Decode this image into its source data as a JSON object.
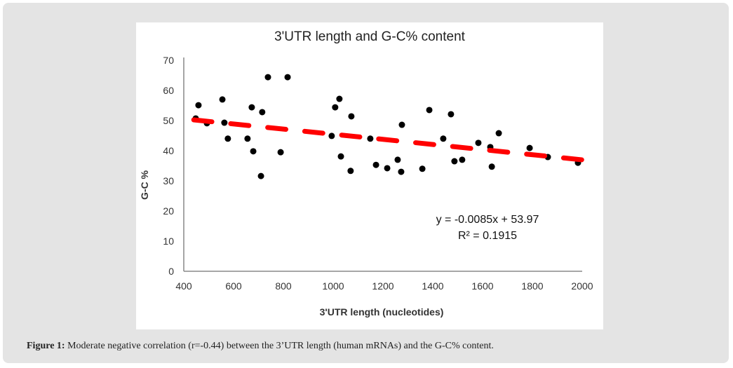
{
  "caption": {
    "label": "Figure 1:",
    "text": " Moderate negative correlation (r=-0.44) between the 3’UTR length (human mRNAs) and the G-C% content."
  },
  "chart_data": {
    "type": "scatter",
    "title": "3'UTR length and G-C% content",
    "xlabel": "3'UTR length (nucleotides)",
    "ylabel": "G-C %",
    "xlim": [
      400,
      2000
    ],
    "ylim": [
      0,
      70
    ],
    "xticks": [
      400,
      600,
      800,
      1000,
      1200,
      1400,
      1600,
      1800,
      2000
    ],
    "yticks": [
      0,
      10,
      20,
      30,
      40,
      50,
      60,
      70
    ],
    "grid": false,
    "points": [
      [
        448,
        50.7
      ],
      [
        459,
        55.1
      ],
      [
        493,
        49.1
      ],
      [
        555,
        57
      ],
      [
        563,
        49.3
      ],
      [
        577,
        44
      ],
      [
        656,
        44
      ],
      [
        673,
        54.4
      ],
      [
        679,
        39.8
      ],
      [
        710,
        31.6
      ],
      [
        715,
        52.8
      ],
      [
        738,
        64.4
      ],
      [
        789,
        39.5
      ],
      [
        817,
        64.4
      ],
      [
        994,
        44.9
      ],
      [
        1008,
        54.4
      ],
      [
        1025,
        57.2
      ],
      [
        1031,
        38.1
      ],
      [
        1070,
        33.3
      ],
      [
        1073,
        51.4
      ],
      [
        1149,
        44
      ],
      [
        1172,
        35.3
      ],
      [
        1217,
        34.2
      ],
      [
        1259,
        37
      ],
      [
        1273,
        33
      ],
      [
        1276,
        48.6
      ],
      [
        1358,
        34
      ],
      [
        1386,
        53.5
      ],
      [
        1442,
        44
      ],
      [
        1473,
        52.1
      ],
      [
        1487,
        36.5
      ],
      [
        1518,
        37
      ],
      [
        1583,
        42.6
      ],
      [
        1631,
        41.2
      ],
      [
        1637,
        34.7
      ],
      [
        1665,
        45.8
      ],
      [
        1789,
        40.9
      ],
      [
        1862,
        37.9
      ],
      [
        1983,
        36
      ]
    ],
    "trendline": {
      "slope": -0.0085,
      "intercept": 53.97,
      "x_range": [
        440,
        2000
      ],
      "color": "#ff0000"
    },
    "annotations": {
      "equation": "y = -0.0085x + 53.97",
      "r2": "R² = 0.1915"
    }
  }
}
